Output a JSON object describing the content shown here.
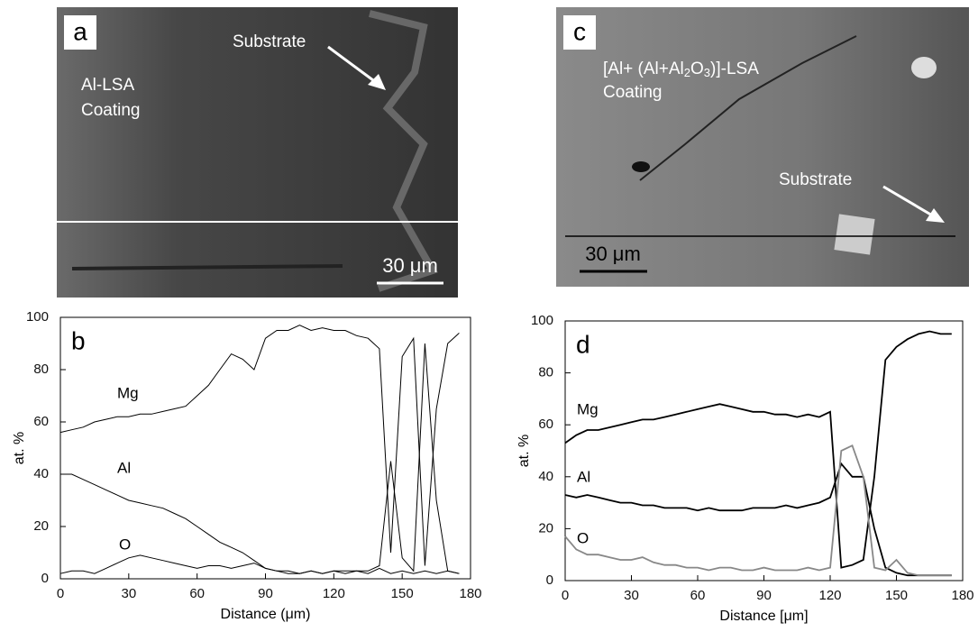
{
  "images": [
    {
      "panel": "a",
      "substrate": "Substrate",
      "coating_line1": "Al-LSA",
      "coating_line2": "Coating",
      "scale_bar": "30 μm"
    },
    {
      "panel": "c",
      "coating_parts": [
        "[Al+ (Al+Al",
        "2",
        "O",
        "3",
        ")]-LSA"
      ],
      "coating_line2": "Coating",
      "substrate": "Substrate",
      "scale_bar": "30 μm"
    }
  ],
  "chart_data": [
    {
      "type": "line",
      "title": "b",
      "x_label": "Distance (μm)",
      "y_label": "at. %",
      "x": [
        0,
        5,
        10,
        15,
        20,
        25,
        30,
        35,
        40,
        45,
        50,
        55,
        60,
        65,
        70,
        75,
        80,
        85,
        90,
        95,
        100,
        105,
        110,
        115,
        120,
        125,
        130,
        135,
        140,
        145,
        150,
        155,
        160,
        165,
        170,
        175
      ],
      "xlim": [
        0,
        180
      ],
      "ylim": [
        0,
        100
      ],
      "xticks": [
        0,
        30,
        60,
        90,
        120,
        150,
        180
      ],
      "yticks": [
        0,
        20,
        40,
        60,
        80,
        100
      ],
      "series": [
        {
          "name": "Mg",
          "color": "#000000",
          "values": [
            56,
            57,
            58,
            60,
            61,
            62,
            62,
            63,
            63,
            64,
            65,
            66,
            70,
            74,
            80,
            86,
            84,
            80,
            92,
            95,
            95,
            97,
            95,
            96,
            95,
            95,
            93,
            92,
            88,
            10,
            85,
            92,
            5,
            65,
            90,
            94
          ]
        },
        {
          "name": "Al",
          "color": "#000000",
          "values": [
            40,
            40,
            38,
            36,
            34,
            32,
            30,
            29,
            28,
            27,
            25,
            23,
            20,
            17,
            14,
            12,
            10,
            7,
            4,
            3,
            2,
            2,
            3,
            2,
            3,
            2,
            3,
            3,
            5,
            45,
            8,
            3,
            90,
            30,
            3,
            2
          ]
        },
        {
          "name": "O",
          "color": "#000000",
          "values": [
            2,
            3,
            3,
            2,
            4,
            6,
            8,
            9,
            8,
            7,
            6,
            5,
            4,
            5,
            5,
            4,
            5,
            6,
            4,
            3,
            3,
            2,
            3,
            2,
            3,
            3,
            3,
            2,
            4,
            2,
            3,
            2,
            3,
            2,
            3,
            2
          ]
        }
      ]
    },
    {
      "type": "line",
      "title": "d",
      "x_label": "Distance [μm]",
      "y_label": "at. %",
      "x": [
        0,
        5,
        10,
        15,
        20,
        25,
        30,
        35,
        40,
        45,
        50,
        55,
        60,
        65,
        70,
        75,
        80,
        85,
        90,
        95,
        100,
        105,
        110,
        115,
        120,
        125,
        130,
        135,
        140,
        145,
        150,
        155,
        160,
        165,
        170,
        175
      ],
      "xlim": [
        0,
        180
      ],
      "ylim": [
        0,
        100
      ],
      "xticks": [
        0,
        30,
        60,
        90,
        120,
        150,
        180
      ],
      "yticks": [
        0,
        20,
        40,
        60,
        80,
        100
      ],
      "series": [
        {
          "name": "Mg",
          "color": "#000000",
          "values": [
            53,
            56,
            58,
            58,
            59,
            60,
            61,
            62,
            62,
            63,
            64,
            65,
            66,
            67,
            68,
            67,
            66,
            65,
            65,
            64,
            64,
            63,
            64,
            63,
            65,
            5,
            6,
            8,
            40,
            85,
            90,
            93,
            95,
            96,
            95,
            95
          ]
        },
        {
          "name": "Al",
          "color": "#000000",
          "values": [
            33,
            32,
            33,
            32,
            31,
            30,
            30,
            29,
            29,
            28,
            28,
            28,
            27,
            28,
            27,
            27,
            27,
            28,
            28,
            28,
            29,
            28,
            29,
            30,
            32,
            45,
            40,
            40,
            20,
            5,
            3,
            2,
            2,
            2,
            2,
            2
          ]
        },
        {
          "name": "O",
          "color": "#888888",
          "values": [
            17,
            12,
            10,
            10,
            9,
            8,
            8,
            9,
            7,
            6,
            6,
            5,
            5,
            4,
            5,
            5,
            4,
            4,
            5,
            4,
            4,
            4,
            5,
            4,
            5,
            50,
            52,
            40,
            5,
            4,
            8,
            3,
            2,
            2,
            2,
            2
          ]
        }
      ]
    }
  ]
}
